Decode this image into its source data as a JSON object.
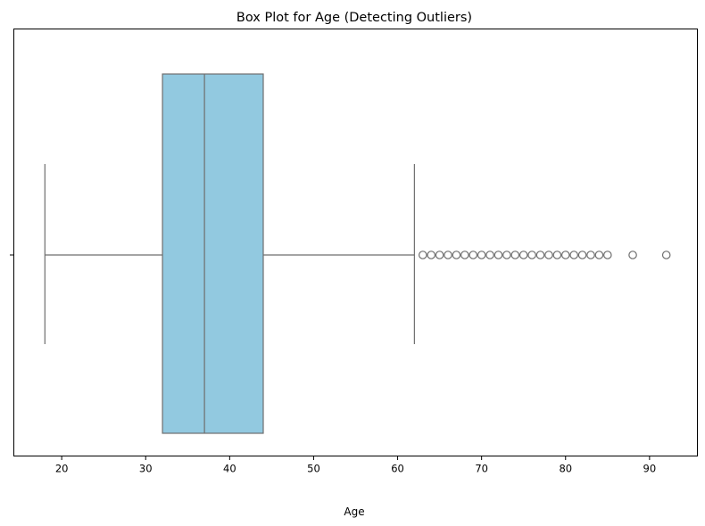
{
  "chart_data": {
    "type": "boxplot",
    "title": "Box Plot for Age (Detecting Outliers)",
    "xlabel": "Age",
    "ylabel": "",
    "xlim": [
      14.3,
      95.7
    ],
    "xticks": [
      20,
      30,
      40,
      50,
      60,
      70,
      80,
      90
    ],
    "orientation": "horizontal",
    "grid": false,
    "legend": "none",
    "box": {
      "whisker_low": 18,
      "q1": 32,
      "median": 37,
      "q3": 44,
      "whisker_high": 62
    },
    "outliers": [
      63,
      64,
      65,
      66,
      67,
      68,
      69,
      70,
      71,
      72,
      73,
      74,
      75,
      76,
      77,
      78,
      79,
      80,
      81,
      82,
      83,
      84,
      85,
      88,
      92
    ],
    "colors": {
      "box_fill": "#92c9e0",
      "lines": "#6e6e6e",
      "axes": "#000000",
      "outlier_edge": "#6e6e6e"
    }
  }
}
